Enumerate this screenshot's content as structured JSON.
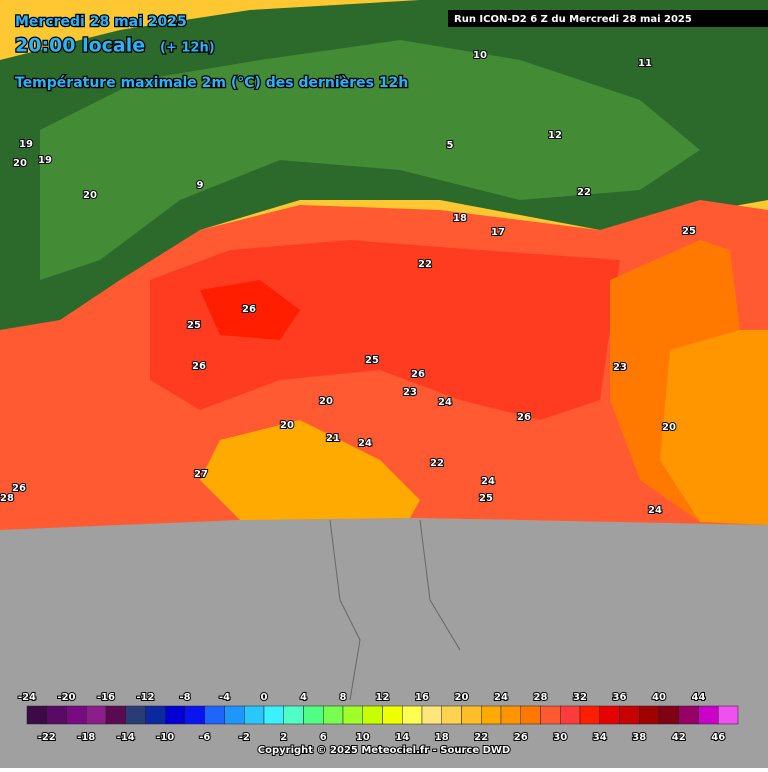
{
  "map": {
    "date": "Mercredi 28 mai 2025",
    "time": "20:00 locale",
    "offset": "(+ 12h)",
    "subtitle": "Température maximale 2m (°C) des dernières 12h",
    "run": "Run ICON-D2 6 Z du Mercredi 28 mai 2025",
    "contour_labels": [
      "26",
      "25",
      "26",
      "25",
      "26",
      "24",
      "26",
      "22",
      "23",
      "20",
      "24",
      "21",
      "20",
      "25",
      "24",
      "20",
      "22",
      "23",
      "25",
      "19",
      "20",
      "22",
      "24",
      "28",
      "26",
      "27",
      "18",
      "17",
      "12",
      "11",
      "10",
      "5",
      "9",
      "20",
      "19"
    ],
    "legend": {
      "top_labels": [
        -24,
        -20,
        -16,
        -12,
        -8,
        -4,
        0,
        4,
        8,
        12,
        16,
        20,
        24,
        28,
        32,
        36,
        40,
        44
      ],
      "bottom_labels": [
        -22,
        -18,
        -14,
        -10,
        -6,
        -2,
        2,
        6,
        10,
        14,
        18,
        22,
        26,
        30,
        34,
        38,
        42,
        46
      ],
      "colors": [
        "#3c0a46",
        "#5a0a64",
        "#780a82",
        "#8c1e8c",
        "#5a0a50",
        "#2a3c78",
        "#0a28a0",
        "#0000d2",
        "#0a14f0",
        "#1e64ff",
        "#1e96ff",
        "#28c8ff",
        "#3cf0ff",
        "#50ffc8",
        "#50ff82",
        "#78ff50",
        "#a0ff28",
        "#c8ff00",
        "#f0ff00",
        "#ffff50",
        "#ffe67a",
        "#ffd250",
        "#ffbe28",
        "#ffaa00",
        "#ff9600",
        "#ff7800",
        "#ff5a32",
        "#ff3c3c",
        "#ff1e00",
        "#e60000",
        "#c80000",
        "#a00000",
        "#820014",
        "#960064",
        "#c800c8",
        "#f050f0"
      ]
    },
    "copyright": "Copyright © 2025 Meteociel.fr - Source DWD"
  }
}
